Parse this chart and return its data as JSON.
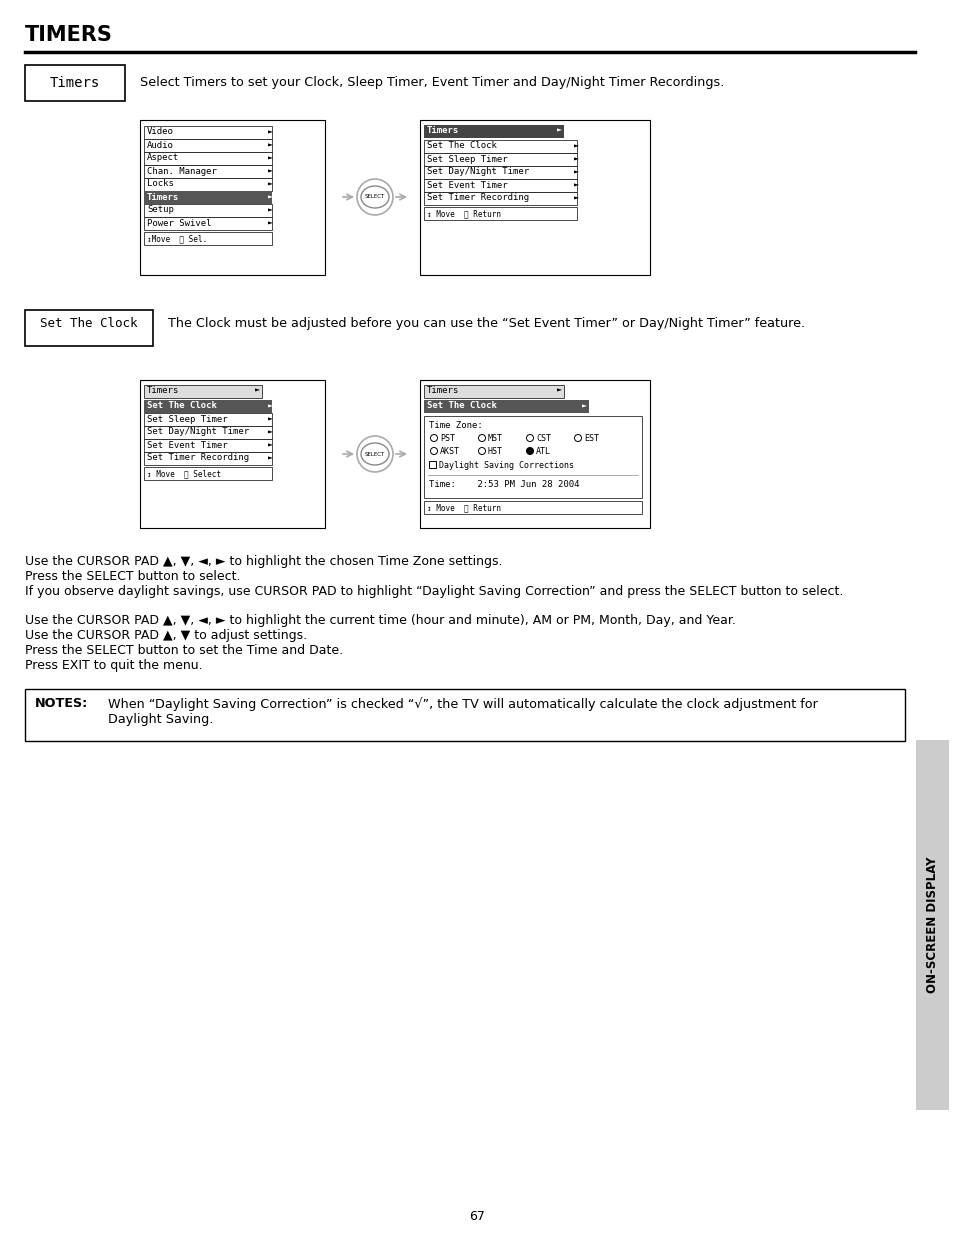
{
  "title": "TIMERS",
  "bg_color": "#ffffff",
  "page_number": "67",
  "timers_box_label": "Timers",
  "timers_desc": "Select Timers to set your Clock, Sleep Timer, Event Timer and Day/Night Timer Recordings.",
  "set_clock_box_label": "Set The Clock",
  "set_clock_desc": "The Clock must be adjusted before you can use the “Set Event Timer” or Day/Night Timer” feature.",
  "menu1_items": [
    "Video",
    "Audio",
    "Aspect",
    "Chan. Manager",
    "Locks",
    "Timers",
    "Setup",
    "Power Swivel"
  ],
  "menu1_footer": "↕Move  Ⓢ Sel.",
  "menu1_highlight": 5,
  "menu2_title": "Timers",
  "menu2_items": [
    "Set The Clock",
    "Set Sleep Timer",
    "Set Day/Night Timer",
    "Set Event Timer",
    "Set Timer Recording"
  ],
  "menu2_footer": "↕ Move  Ⓢ Return",
  "menu3_title": "Timers",
  "menu3_items": [
    "Set The Clock",
    "Set Sleep Timer",
    "Set Day/Night Timer",
    "Set Event Timer",
    "Set Timer Recording"
  ],
  "menu3_footer": "↕ Move  Ⓢ Select",
  "menu3_highlight": 0,
  "menu4_title": "Timers",
  "menu4_subtitle": "Set The Clock",
  "menu4_timezone_label": "Time Zone:",
  "menu4_tz_row1": [
    "PST",
    "MST",
    "CST",
    "EST"
  ],
  "menu4_tz_row2": [
    "AKST",
    "HST",
    "ATL"
  ],
  "menu4_tz_selected": "ATL",
  "menu4_daylight": "Daylight Saving Corrections",
  "menu4_time": "Time:    2:53 PM Jun 28 2004",
  "menu4_footer": "↕ Move  Ⓢ Return",
  "para1_line1": "Use the CURSOR PAD ▲, ▼, ◄, ► to highlight the chosen Time Zone settings.",
  "para1_line2": "Press the SELECT button to select.",
  "para1_line3": "If you observe daylight savings, use CURSOR PAD to highlight “Daylight Saving Correction” and press the SELECT button to select.",
  "para2_line1": "Use the CURSOR PAD ▲, ▼, ◄, ► to highlight the current time (hour and minute), AM or PM, Month, Day, and Year.",
  "para2_line2": "Use the CURSOR PAD ▲, ▼ to adjust settings.",
  "para2_line3": "Press the SELECT button to set the Time and Date.",
  "para2_line4": "Press EXIT to quit the menu.",
  "notes_label": "NOTES:",
  "notes_text1": "When “Daylight Saving Correction” is checked “√”, the TV will automatically calculate the clock adjustment for",
  "notes_text2": "Daylight Saving.",
  "sidebar_text": "ON-SCREEN DISPLAY"
}
